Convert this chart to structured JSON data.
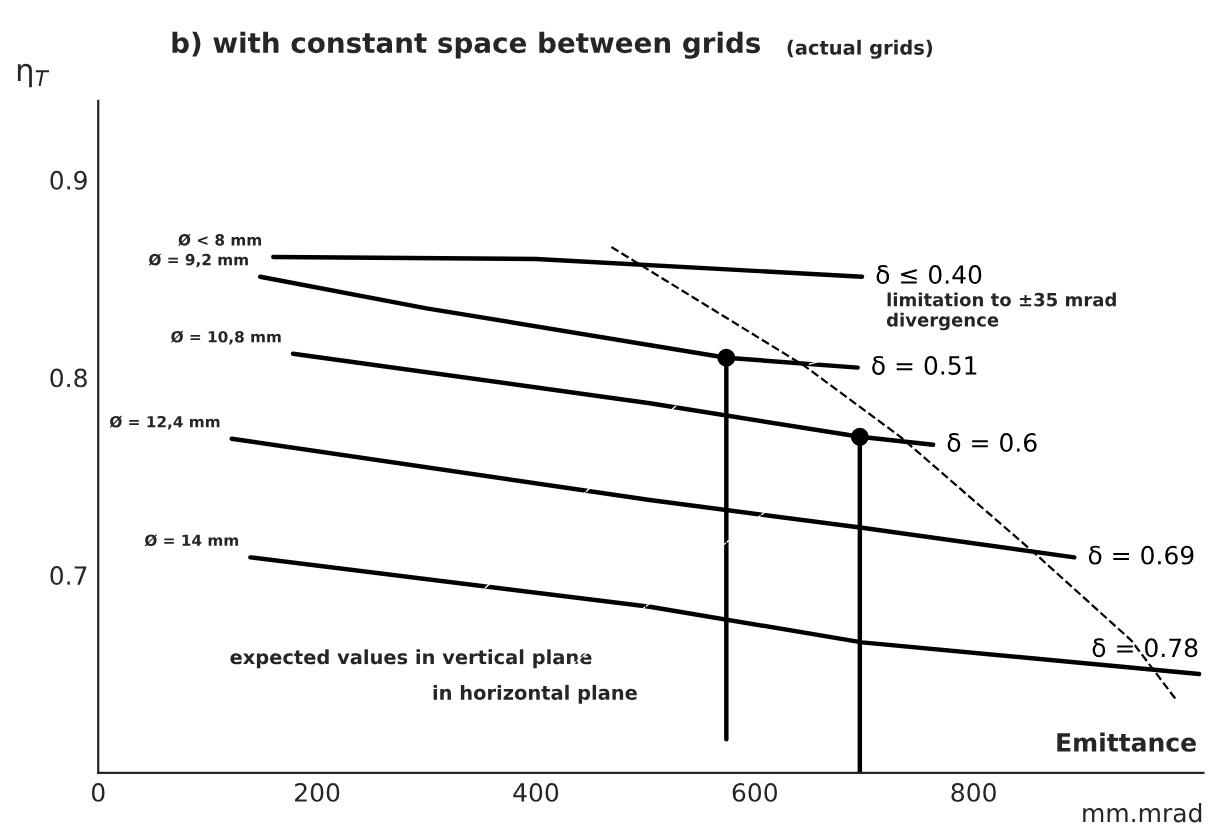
{
  "chart_data": {
    "type": "line",
    "title": "b) with constant space between grids",
    "subtitle": "(actual grids)",
    "ylabel": "η$_{T}$",
    "xlabel": "Emittance",
    "xlim": [
      0,
      1010
    ],
    "ylim": [
      0.6,
      0.94
    ],
    "xticks": [
      0,
      200,
      400,
      600,
      800
    ],
    "yticks": [
      {
        "value": 0.7,
        "label": "0.7"
      },
      {
        "value": 0.8,
        "label": "0.8"
      },
      {
        "value": 0.9,
        "label": "0.9"
      }
    ],
    "grid": false,
    "marker": "none",
    "line_style": "solid",
    "series": [
      {
        "name": "δ ≤ 0.40",
        "color": "#000000",
        "x": [
          160,
          400,
          698
        ],
        "values": [
          0.861,
          0.86,
          0.851
        ]
      },
      {
        "name": "δ = 0.51",
        "color": "#000000",
        "x": [
          148,
          300,
          574,
          694
        ],
        "values": [
          0.851,
          0.835,
          0.81,
          0.805
        ]
      },
      {
        "name": "δ = 0.6",
        "color": "#000000",
        "x": [
          178,
          504,
          696,
          763
        ],
        "values": [
          0.812,
          0.787,
          0.77,
          0.766
        ]
      },
      {
        "name": "δ = 0.69",
        "color": "#000000",
        "x": [
          122,
          504,
          698,
          892
        ],
        "values": [
          0.769,
          0.738,
          0.724,
          0.709
        ]
      },
      {
        "name": "δ = 0.78",
        "color": "#000000",
        "x": [
          139,
          504,
          698,
          1006
        ],
        "values": [
          0.709,
          0.684,
          0.666,
          0.65
        ]
      },
      {
        "color": "#000000",
        "line_style": "dashed",
        "x": [
          469,
          645,
          733,
          856,
          944,
          985
        ],
        "values": [
          0.866,
          0.806,
          0.77,
          0.711,
          0.667,
          0.637
        ]
      },
      {
        "color": "#000000",
        "x": [
          574,
          574
        ],
        "values": [
          0.81,
          0.617
        ]
      },
      {
        "color": "#000000",
        "x": [
          696,
          696
        ],
        "values": [
          0.77,
          0.6
        ]
      },
      {
        "type": "scatter",
        "color": "#000000",
        "marker": "circle",
        "x": [
          574,
          696
        ],
        "values": [
          0.81,
          0.77
        ]
      }
    ],
    "annotations": [
      {
        "text": "Ø < 8 mm",
        "x": 160,
        "y": 0.861
      },
      {
        "text": "Ø = 9,2 mm",
        "x": 148,
        "y": 0.851
      },
      {
        "text": "Ø = 10,8 mm",
        "x": 178,
        "y": 0.812
      },
      {
        "text": "Ø = 12,4 mm",
        "x": 122,
        "y": 0.769
      },
      {
        "text": "Ø = 14 mm",
        "x": 139,
        "y": 0.709
      },
      {
        "text": "limitation to ±35 mrad\ndivergence",
        "x": 645,
        "y": 0.806
      },
      {
        "text": "expected values in vertical plane",
        "x": 574,
        "y": 0.81
      },
      {
        "text": "in horizontal plane",
        "x": 696,
        "y": 0.77
      },
      "mm.mrad"
    ]
  }
}
